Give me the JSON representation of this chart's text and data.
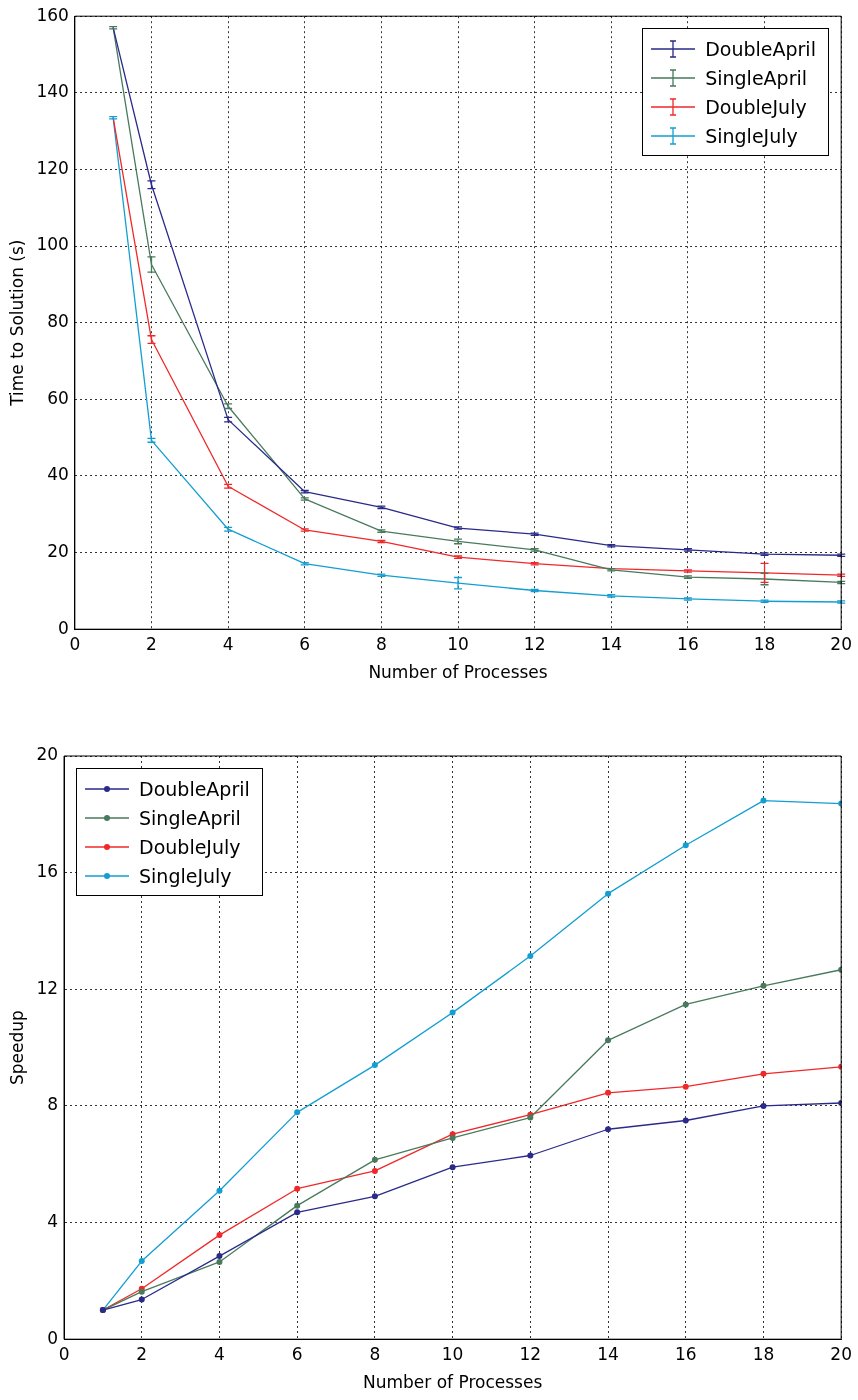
{
  "chart_data": [
    {
      "type": "line",
      "xlabel": "Number of Processes",
      "ylabel": "Time to Solution (s)",
      "x": [
        1,
        2,
        4,
        6,
        8,
        10,
        12,
        14,
        16,
        18,
        20
      ],
      "xlim": [
        0,
        20
      ],
      "xticks": [
        0,
        2,
        4,
        6,
        8,
        10,
        12,
        14,
        16,
        18,
        20
      ],
      "ylim": [
        0,
        160
      ],
      "yticks": [
        0,
        20,
        40,
        60,
        80,
        100,
        120,
        140,
        160
      ],
      "grid": true,
      "legend": "top right",
      "marker": "none",
      "line_style": "solid",
      "series": [
        {
          "name": "DoubleApril",
          "color": "#2a2a8a",
          "values": [
            157,
            116,
            54.7,
            35.9,
            31.8,
            26.4,
            24.8,
            21.8,
            20.7,
            19.6,
            19.3
          ],
          "errors": [
            null,
            1,
            0.6,
            0.3,
            0.3,
            0.3,
            0.3,
            0.3,
            0.3,
            0.3,
            0.3
          ]
        },
        {
          "name": "SingleApril",
          "color": "#487a5c",
          "values": [
            157,
            95.2,
            58.2,
            34,
            25.6,
            22.9,
            20.7,
            15.5,
            13.6,
            13.1,
            12.2
          ],
          "errors": [
            0.3,
            2,
            0.6,
            0.3,
            0.3,
            0.6,
            0.3,
            0.3,
            0.3,
            1.5,
            0.3
          ]
        },
        {
          "name": "DoubleJuly",
          "color": "#f0282a",
          "values": [
            133.5,
            75.6,
            37.3,
            25.9,
            22.9,
            18.8,
            17.1,
            15.8,
            15.2,
            14.7,
            14.1
          ],
          "errors": [
            null,
            1,
            0.5,
            0.3,
            0.3,
            0.3,
            0.3,
            null,
            0.3,
            2.5,
            0.3
          ]
        },
        {
          "name": "SingleJuly",
          "color": "#139ed2",
          "values": [
            133.5,
            49.3,
            26.1,
            17.1,
            14.1,
            12,
            10.1,
            8.7,
            7.9,
            7.3,
            7.1
          ],
          "errors": [
            0.3,
            0.5,
            0.5,
            0.3,
            0.3,
            1.5,
            0.3,
            0.3,
            0.3,
            0.3,
            0.3
          ]
        }
      ]
    },
    {
      "type": "line",
      "xlabel": "Number of Processes",
      "ylabel": "Speedup",
      "x": [
        1,
        2,
        4,
        6,
        8,
        10,
        12,
        14,
        16,
        18,
        20
      ],
      "xlim": [
        0,
        20
      ],
      "xticks": [
        0,
        2,
        4,
        6,
        8,
        10,
        12,
        14,
        16,
        18,
        20
      ],
      "ylim": [
        0,
        20
      ],
      "yticks": [
        0,
        4,
        8,
        12,
        16,
        20
      ],
      "grid": true,
      "legend": "top left",
      "marker": "circle",
      "line_style": "solid",
      "series": [
        {
          "name": "DoubleApril",
          "color": "#2a2a8a",
          "values": [
            1,
            1.36,
            2.85,
            4.35,
            4.9,
            5.9,
            6.3,
            7.2,
            7.5,
            8,
            8.1
          ]
        },
        {
          "name": "SingleApril",
          "color": "#487a5c",
          "values": [
            1,
            1.63,
            2.65,
            4.58,
            6.15,
            6.9,
            7.6,
            10.25,
            11.48,
            12.12,
            12.67
          ]
        },
        {
          "name": "DoubleJuly",
          "color": "#f0282a",
          "values": [
            1,
            1.73,
            3.57,
            5.16,
            5.77,
            7.03,
            7.7,
            8.45,
            8.66,
            9.1,
            9.34
          ]
        },
        {
          "name": "SingleJuly",
          "color": "#139ed2",
          "values": [
            1,
            2.68,
            5.09,
            7.78,
            9.4,
            11.2,
            13.14,
            15.28,
            16.94,
            18.47,
            18.37
          ]
        }
      ]
    }
  ]
}
